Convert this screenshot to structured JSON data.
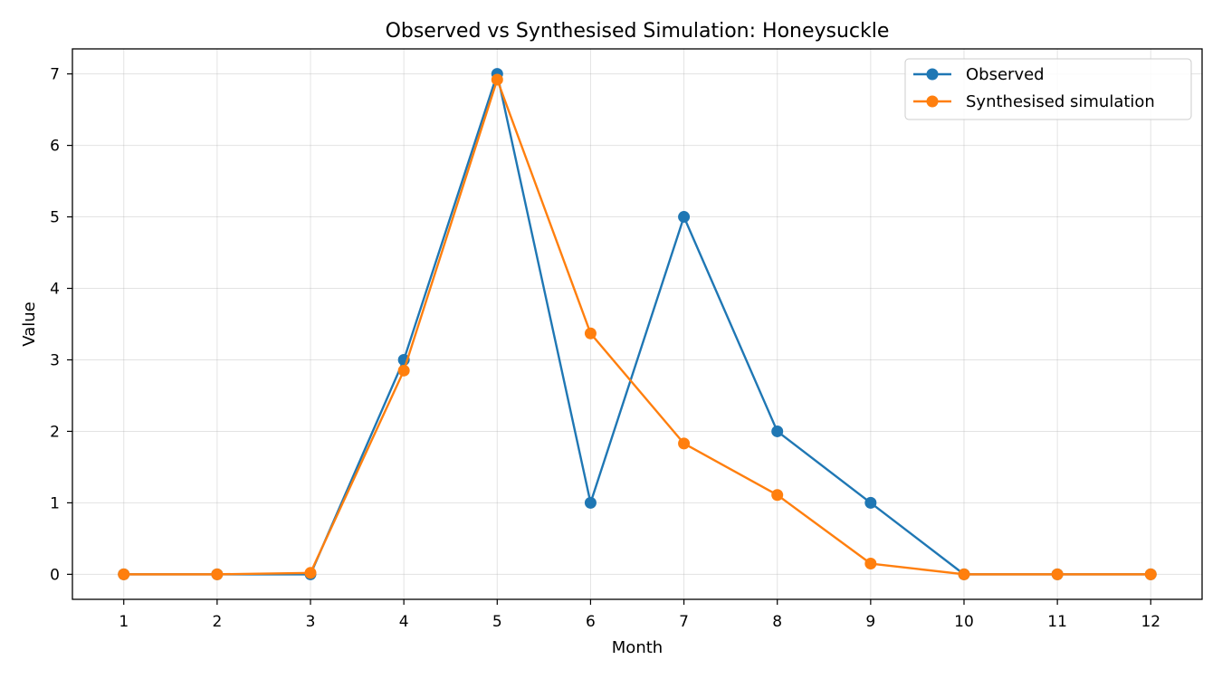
{
  "chart_data": {
    "type": "line",
    "title": "Observed vs Synthesised Simulation: Honeysuckle",
    "xlabel": "Month",
    "ylabel": "Value",
    "x": [
      1,
      2,
      3,
      4,
      5,
      6,
      7,
      8,
      9,
      10,
      11,
      12
    ],
    "xticks": [
      "1",
      "2",
      "3",
      "4",
      "5",
      "6",
      "7",
      "8",
      "9",
      "10",
      "11",
      "12"
    ],
    "yticks": [
      "0",
      "1",
      "2",
      "3",
      "4",
      "5",
      "6",
      "7"
    ],
    "ylim": [
      -0.35,
      7.35
    ],
    "xlim": [
      0.45,
      12.55
    ],
    "grid": true,
    "legend_position": "top-right",
    "series": [
      {
        "name": "Observed",
        "color": "#1f77b4",
        "marker": "circle",
        "values": [
          0,
          0,
          0,
          3,
          7,
          1,
          5,
          2,
          1,
          0,
          0,
          0
        ]
      },
      {
        "name": "Synthesised simulation",
        "color": "#ff7f0e",
        "marker": "circle",
        "values": [
          0,
          0,
          0.02,
          2.85,
          6.92,
          3.37,
          1.83,
          1.11,
          0.15,
          0,
          0,
          0
        ]
      }
    ]
  }
}
